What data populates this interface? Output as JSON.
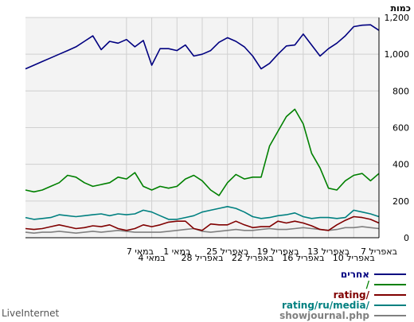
{
  "chart_data": {
    "type": "line",
    "ylabel": "כמות",
    "ylim": [
      0,
      1200
    ],
    "yticks": [
      "0",
      "200",
      "400",
      "600",
      "800",
      "1,000",
      "1,200"
    ],
    "ytick_values": [
      0,
      200,
      400,
      600,
      800,
      1000,
      1200
    ],
    "grid": true,
    "x_order": "right-to-left",
    "n_points": 43,
    "xtick_labels": [
      {
        "index": 0,
        "label": "7 באפריל"
      },
      {
        "index": 3,
        "label": "10 באפריל"
      },
      {
        "index": 6,
        "label": "13 באפריל"
      },
      {
        "index": 9,
        "label": "16 באפריל"
      },
      {
        "index": 12,
        "label": "19 באפריל"
      },
      {
        "index": 15,
        "label": "22 באפריל"
      },
      {
        "index": 18,
        "label": "25 באפריל"
      },
      {
        "index": 21,
        "label": "28 באפריל"
      },
      {
        "index": 24,
        "label": "1 במאי"
      },
      {
        "index": 27,
        "label": "4 במאי"
      },
      {
        "index": 30,
        "label": "7 במאי"
      }
    ],
    "series": [
      {
        "name": "אחרים",
        "color": "#000080",
        "values": [
          1130,
          1160,
          1158,
          1150,
          1100,
          1060,
          1030,
          990,
          1050,
          1110,
          1050,
          1045,
          1000,
          950,
          920,
          990,
          1040,
          1070,
          1090,
          1065,
          1020,
          1000,
          990,
          1050,
          1020,
          1030,
          1030,
          940,
          1075,
          1040,
          1080,
          1060,
          1070,
          1025,
          1100,
          1070,
          1040,
          1020,
          1000,
          980,
          960,
          940,
          920
        ]
      },
      {
        "name": "/",
        "color": "#008000",
        "values": [
          350,
          310,
          350,
          340,
          310,
          260,
          270,
          380,
          460,
          620,
          700,
          660,
          580,
          500,
          330,
          330,
          320,
          345,
          300,
          230,
          260,
          310,
          340,
          320,
          280,
          270,
          280,
          260,
          280,
          355,
          320,
          330,
          300,
          290,
          280,
          300,
          330,
          340,
          300,
          280,
          260,
          250,
          260
        ]
      },
      {
        "name": "rating/",
        "color": "#800000",
        "values": [
          80,
          100,
          110,
          115,
          95,
          70,
          40,
          45,
          65,
          80,
          90,
          80,
          90,
          60,
          60,
          55,
          70,
          90,
          70,
          70,
          75,
          40,
          50,
          90,
          90,
          85,
          70,
          60,
          70,
          50,
          40,
          50,
          70,
          60,
          65,
          55,
          50,
          60,
          70,
          60,
          50,
          45,
          50
        ]
      },
      {
        "name": "rating/ru/media/",
        "color": "#008080",
        "values": [
          115,
          130,
          140,
          150,
          110,
          105,
          110,
          110,
          105,
          115,
          135,
          125,
          120,
          110,
          105,
          115,
          140,
          160,
          170,
          160,
          150,
          140,
          120,
          110,
          100,
          100,
          120,
          140,
          150,
          130,
          125,
          130,
          120,
          130,
          125,
          120,
          115,
          120,
          125,
          110,
          105,
          100,
          110
        ]
      },
      {
        "name": "showjournal.php",
        "color": "#808080",
        "values": [
          50,
          55,
          60,
          55,
          55,
          45,
          40,
          45,
          50,
          55,
          50,
          45,
          45,
          50,
          45,
          40,
          40,
          45,
          40,
          35,
          30,
          35,
          50,
          45,
          40,
          35,
          30,
          30,
          30,
          30,
          35,
          40,
          35,
          30,
          35,
          30,
          25,
          30,
          35,
          30,
          30,
          25,
          30
        ]
      }
    ]
  },
  "footer": {
    "brand": "LiveInternet"
  }
}
